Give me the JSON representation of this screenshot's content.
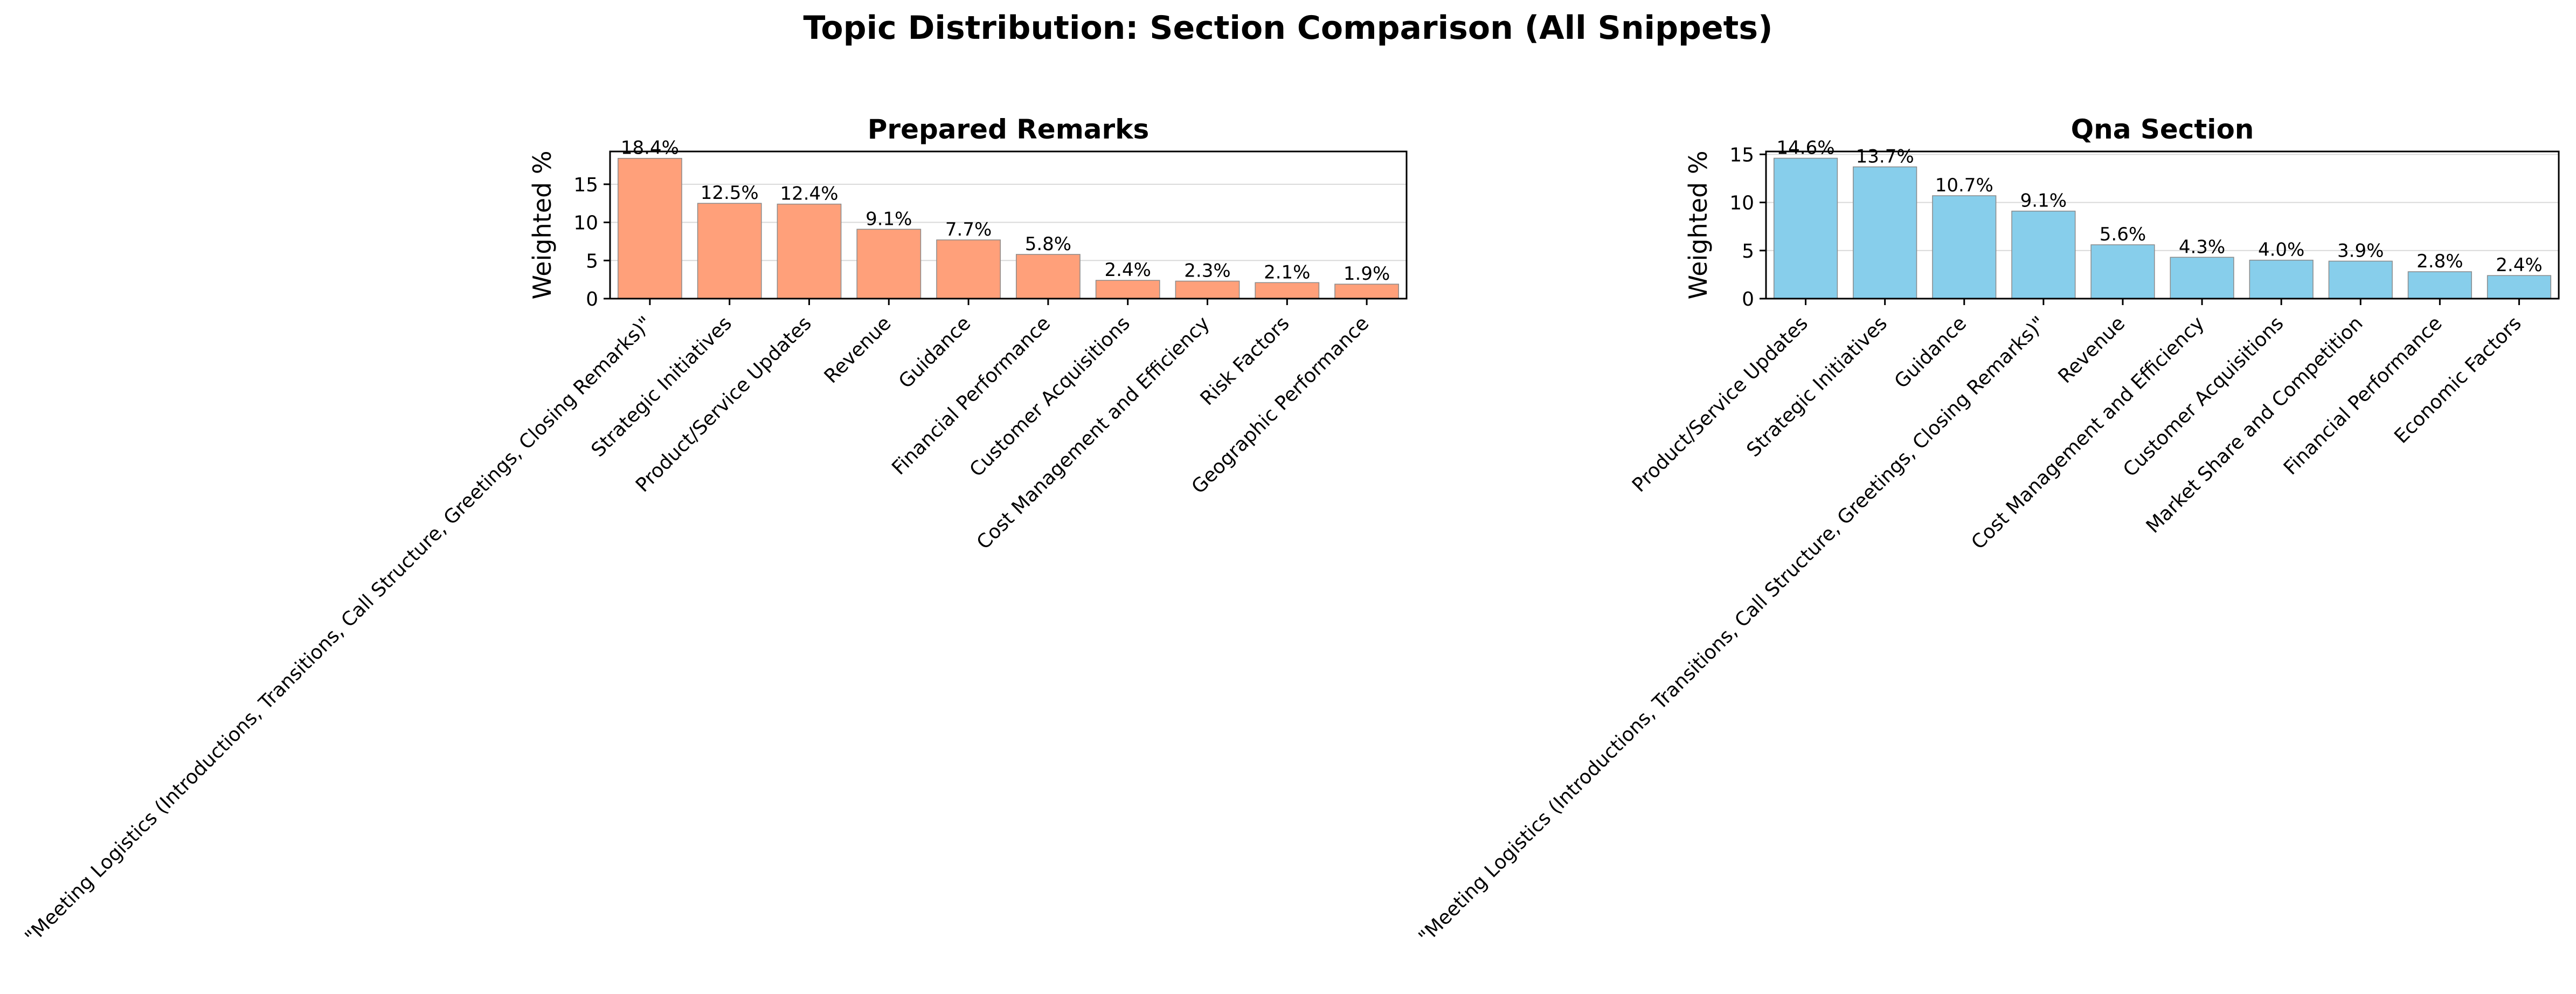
{
  "figure": {
    "title": "Topic Distribution: Section Comparison (All Snippets)"
  },
  "chart_data": [
    {
      "type": "bar",
      "title": "Prepared Remarks",
      "xlabel": "",
      "ylabel": "Weighted %",
      "ylim": [
        0,
        19.3
      ],
      "yticks": [
        0,
        5,
        10,
        15
      ],
      "grid": true,
      "color": "#ffa07a",
      "categories": [
        "\"Meeting Logistics (Introductions, Transitions, Call Structure, Greetings, Closing Remarks)\"",
        "Strategic Initiatives",
        "Product/Service Updates",
        "Revenue",
        "Guidance",
        "Financial Performance",
        "Customer Acquisitions",
        "Cost Management and Efficiency",
        "Risk Factors",
        "Geographic Performance"
      ],
      "values": [
        18.4,
        12.5,
        12.4,
        9.1,
        7.7,
        5.8,
        2.4,
        2.3,
        2.1,
        1.9
      ],
      "labels": [
        "18.4%",
        "12.5%",
        "12.4%",
        "9.1%",
        "7.7%",
        "5.8%",
        "2.4%",
        "2.3%",
        "2.1%",
        "1.9%"
      ]
    },
    {
      "type": "bar",
      "title": "Qna Section",
      "xlabel": "",
      "ylabel": "Weighted %",
      "ylim": [
        0,
        15.3
      ],
      "yticks": [
        0,
        5,
        10,
        15
      ],
      "grid": true,
      "color": "#87ceeb",
      "categories": [
        "Product/Service Updates",
        "Strategic Initiatives",
        "Guidance",
        "\"Meeting Logistics (Introductions, Transitions, Call Structure, Greetings, Closing Remarks)\"",
        "Revenue",
        "Cost Management and Efficiency",
        "Customer Acquisitions",
        "Market Share and Competition",
        "Financial Performance",
        "Economic Factors"
      ],
      "values": [
        14.6,
        13.7,
        10.7,
        9.1,
        5.6,
        4.3,
        4.0,
        3.9,
        2.8,
        2.4
      ],
      "labels": [
        "14.6%",
        "13.7%",
        "10.7%",
        "9.1%",
        "5.6%",
        "4.3%",
        "4.0%",
        "3.9%",
        "2.8%",
        "2.4%"
      ]
    }
  ]
}
